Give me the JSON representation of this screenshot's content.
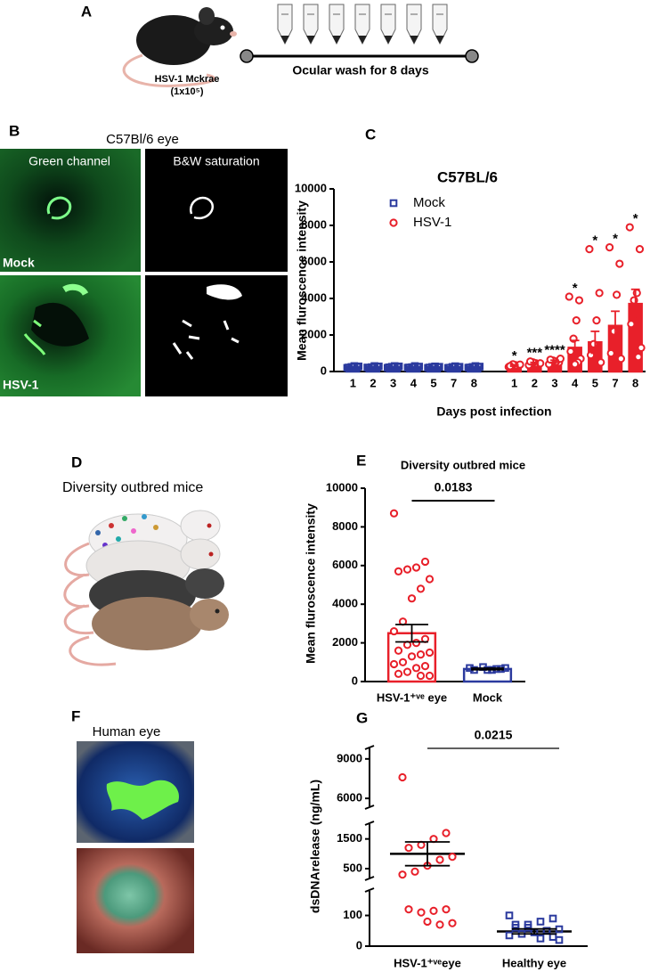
{
  "panel_a": {
    "label": "A",
    "strain": "HSV-1 Mckrae",
    "dose": "(1x10⁵)",
    "wash": "Ocular wash for 8 days"
  },
  "panel_b": {
    "label": "B",
    "title": "C57Bl/6 eye",
    "columns": [
      "Green channel",
      "B&W saturation"
    ],
    "rows": [
      "Mock",
      "HSV-1"
    ]
  },
  "panel_d": {
    "label": "D",
    "title": "Diversity outbred mice"
  },
  "panel_f": {
    "label": "F",
    "title": "Human eye"
  },
  "chart_data": [
    {
      "type": "bar",
      "label": "C",
      "title": "C57BL/6",
      "y_label": "Mean fluroscence intensity",
      "x_label": "Days post infection",
      "categories": [
        "1",
        "2",
        "3",
        "4",
        "5",
        "7",
        "8",
        null,
        "1",
        "2",
        "3",
        "4",
        "5",
        "7",
        "8"
      ],
      "ylim": [
        0,
        10000
      ],
      "yticks": [
        0,
        2000,
        4000,
        6000,
        8000,
        10000
      ],
      "bar_fill": true,
      "legend": "upper left",
      "series": [
        {
          "name": "Mock",
          "color": "#2b3a9e",
          "marker": "square",
          "values": [
            250,
            250,
            250,
            250,
            240,
            240,
            250,
            null,
            null,
            null,
            null,
            null,
            null,
            null,
            null
          ],
          "errors": [
            20,
            20,
            20,
            20,
            20,
            20,
            20,
            null,
            null,
            null,
            null,
            null,
            null,
            null,
            null
          ],
          "points": [
            [
              200,
              250,
              300,
              250,
              220,
              280
            ],
            [
              220,
              260,
              300,
              240,
              200,
              280
            ],
            [
              200,
              250,
              300,
              260,
              230,
              280
            ],
            [
              210,
              250,
              300,
              240,
              220,
              270
            ],
            [
              200,
              240,
              280,
              250,
              220,
              260
            ],
            [
              200,
              240,
              290,
              250,
              210,
              260
            ],
            [
              210,
              250,
              300,
              250,
              220,
              270
            ],
            null,
            null,
            null,
            null,
            null,
            null,
            null,
            null
          ],
          "annotations": [
            null,
            null,
            null,
            null,
            null,
            null,
            null,
            null,
            null,
            null,
            null,
            null,
            null,
            null,
            null
          ]
        },
        {
          "name": "HSV-1",
          "color": "#e8202a",
          "marker": "circle",
          "values": [
            null,
            null,
            null,
            null,
            null,
            null,
            null,
            null,
            330,
            450,
            560,
            1300,
            1600,
            2500,
            3700
          ],
          "errors": [
            null,
            null,
            null,
            null,
            null,
            null,
            null,
            null,
            40,
            50,
            60,
            400,
            600,
            800,
            800
          ],
          "points": [
            null,
            null,
            null,
            null,
            null,
            null,
            null,
            null,
            [
              250,
              300,
              350,
              400,
              300,
              380
            ],
            [
              350,
              400,
              450,
              500,
              550,
              450
            ],
            [
              400,
              500,
              550,
              600,
              650,
              700
            ],
            [
              4100,
              3900,
              2800,
              1800,
              1100,
              700,
              500,
              400
            ],
            [
              6700,
              4300,
              2800,
              1500,
              900,
              500
            ],
            [
              6800,
              5900,
              4200,
              2200,
              1000,
              700
            ],
            [
              7900,
              6700,
              4300,
              3900,
              2600,
              1300,
              800
            ]
          ],
          "annotations": [
            null,
            null,
            null,
            null,
            null,
            null,
            null,
            null,
            "*",
            "***",
            "****",
            "*",
            "*",
            "*",
            "*"
          ]
        }
      ]
    },
    {
      "type": "bar",
      "label": "E",
      "title": "Diversity outbred mice",
      "y_label": "Mean fluroscence intensity",
      "categories": [
        "HSV-1⁺ᵛᵉ eye",
        "Mock"
      ],
      "ylim": [
        0,
        10000
      ],
      "yticks": [
        0,
        2000,
        4000,
        6000,
        8000,
        10000
      ],
      "bar_fill": false,
      "colors": [
        "#e8202a",
        "#2b3a9e"
      ],
      "markers": [
        "circle",
        "square"
      ],
      "error_color": "#000000",
      "values": [
        2500,
        650
      ],
      "errors": [
        450,
        40
      ],
      "points": [
        [
          8700,
          6200,
          5900,
          5800,
          5700,
          5300,
          4800,
          4300,
          3100,
          2600,
          2200,
          2000,
          1900,
          1600,
          1500,
          1400,
          1300,
          1000,
          900,
          800,
          700,
          500,
          400,
          300,
          300
        ],
        [
          700,
          650,
          600,
          750,
          600,
          700,
          650,
          600
        ]
      ],
      "pvalue": 0.0183
    },
    {
      "type": "scatter",
      "label": "G",
      "y_label": "dsDNArelease (ng/mL)",
      "categories": [
        "HSV-1⁺ᵛᵉeye",
        "Healthy eye"
      ],
      "segments": [
        {
          "ylim": [
            0,
            180
          ],
          "yticks": [
            0,
            100
          ]
        },
        {
          "ylim": [
            200,
            2000
          ],
          "yticks": [
            500,
            1500
          ]
        },
        {
          "ylim": [
            5400,
            9800
          ],
          "yticks": [
            6000,
            9000
          ]
        }
      ],
      "colors": [
        "#e8202a",
        "#2b3a9e"
      ],
      "markers": [
        "circle",
        "square"
      ],
      "error_color": "#000000",
      "values": [
        1000,
        48
      ],
      "errors": [
        400,
        8
      ],
      "points": [
        [
          7600,
          1700,
          1500,
          1300,
          1200,
          900,
          800,
          600,
          400,
          300,
          120,
          115,
          110,
          120,
          75,
          70,
          80
        ],
        [
          100,
          90,
          80,
          70,
          60,
          55,
          50,
          45,
          40,
          35,
          30,
          25,
          60,
          70,
          20,
          50
        ]
      ],
      "pvalue": 0.0215
    }
  ]
}
